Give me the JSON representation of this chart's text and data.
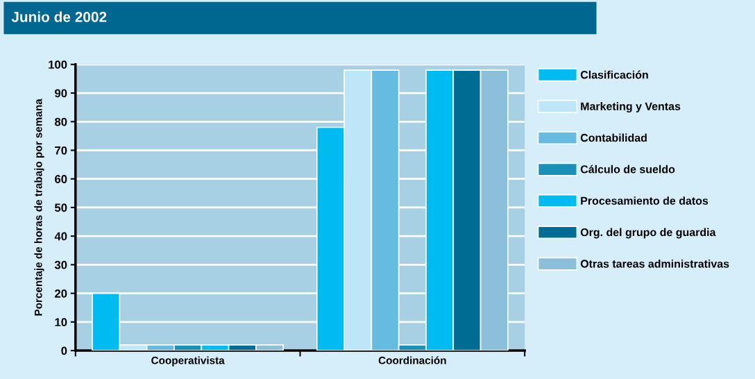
{
  "chart_data": {
    "type": "bar",
    "title": "Junio de 2002",
    "ylabel": "Porcentaje de horas de trabajo por semana",
    "categories": [
      "Cooperativista",
      "Coordinación"
    ],
    "series": [
      {
        "name": "Clasificación",
        "color": "#00bbf0",
        "values": [
          20,
          78
        ]
      },
      {
        "name": "Marketing y Ventas",
        "color": "#bde6f8",
        "values": [
          2,
          98
        ]
      },
      {
        "name": "Contabilidad",
        "color": "#66bce0",
        "values": [
          2,
          98
        ]
      },
      {
        "name": "Cálculo de sueldo",
        "color": "#1a8fb8",
        "values": [
          2,
          2
        ]
      },
      {
        "name": "Procesamiento de datos",
        "color": "#00bbf0",
        "values": [
          2,
          98
        ]
      },
      {
        "name": "Org. del grupo de guardia",
        "color": "#006c93",
        "values": [
          2,
          98
        ]
      },
      {
        "name": "Otras tareas administrativas",
        "color": "#8cc0da",
        "values": [
          2,
          98
        ]
      }
    ],
    "ylim": [
      0,
      100
    ],
    "yticks": [
      0,
      10,
      20,
      30,
      40,
      50,
      60,
      70,
      80,
      90,
      100
    ],
    "grid": "y",
    "legend": "right"
  }
}
